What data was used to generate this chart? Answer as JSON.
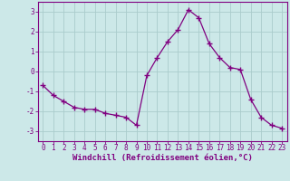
{
  "x": [
    0,
    1,
    2,
    3,
    4,
    5,
    6,
    7,
    8,
    9,
    10,
    11,
    12,
    13,
    14,
    15,
    16,
    17,
    18,
    19,
    20,
    21,
    22,
    23
  ],
  "y": [
    -0.7,
    -1.2,
    -1.5,
    -1.8,
    -1.9,
    -1.9,
    -2.1,
    -2.2,
    -2.3,
    -2.7,
    -0.2,
    0.7,
    1.5,
    2.1,
    3.1,
    2.7,
    1.4,
    0.7,
    0.2,
    0.1,
    -1.4,
    -2.3,
    -2.7,
    -2.85
  ],
  "line_color": "#800080",
  "marker": "+",
  "marker_size": 4,
  "bg_color": "#cce8e8",
  "grid_color": "#aacccc",
  "ylim": [
    -3.5,
    3.5
  ],
  "xlim": [
    -0.5,
    23.5
  ],
  "yticks": [
    -3,
    -2,
    -1,
    0,
    1,
    2,
    3
  ],
  "xticks": [
    0,
    1,
    2,
    3,
    4,
    5,
    6,
    7,
    8,
    9,
    10,
    11,
    12,
    13,
    14,
    15,
    16,
    17,
    18,
    19,
    20,
    21,
    22,
    23
  ],
  "tick_label_size": 5.5,
  "xlabel": "Windchill (Refroidissement éolien,°C)",
  "xlabel_size": 6.5,
  "xlabel_color": "#800080",
  "spine_color": "#800080"
}
